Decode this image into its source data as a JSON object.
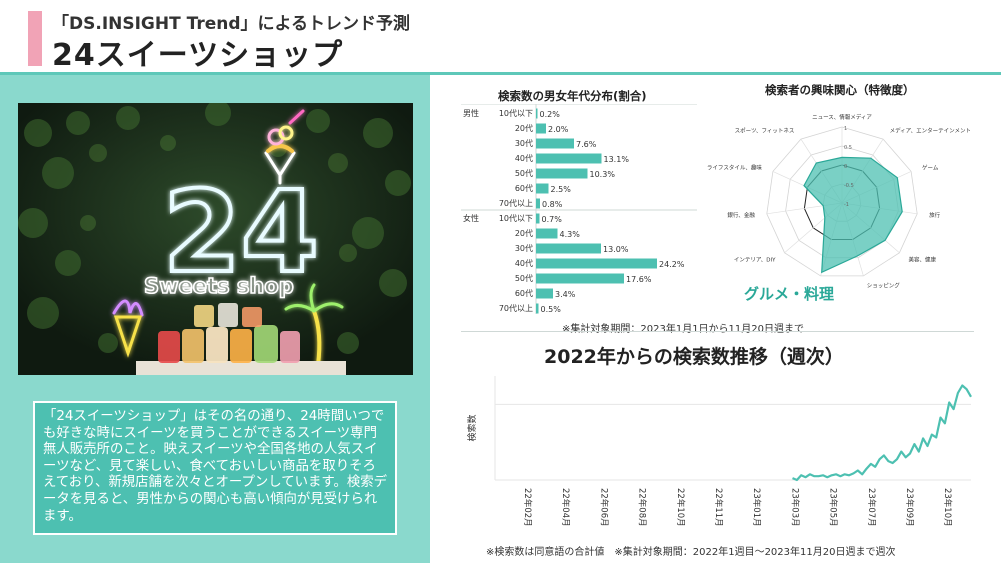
{
  "header": {
    "subtitle": "「DS.INSIGHT Trend」によるトレンド予測",
    "title": "24スイーツショップ"
  },
  "photo": {
    "neon_number": "24",
    "neon_text": "Sweets shop"
  },
  "description": "「24スイーツショップ」はその名の通り、24時間いつでも好きな時にスイーツを買うことができるスイーツ専門無人販売所のこと。映えスイーツや全国各地の人気スイーツなど、見て楽しい、食べておいしい商品を取りそろえており、新規店舗を次々とオープンしています。検索データを見ると、男性からの関心も高い傾向が見受けられます。",
  "gender_chart": {
    "title": "検索数の男女年代分布(割合)"
  },
  "interest_chart": {
    "title": "検索者の興味関心（特徴度）",
    "highlight": "グルメ・料理"
  },
  "period_note": "※集計対象期間：2023年1月1日から11月20日週まで",
  "trend_chart": {
    "title": "2022年からの検索数推移（週次）"
  },
  "footer_note": "※検索数は同意語の合計値　※集計対象期間：2022年1週目〜2023年11月20日週まで週次",
  "chart_data": [
    {
      "type": "bar",
      "orientation": "horizontal",
      "title": "検索数の男女年代分布(割合)",
      "groups": [
        {
          "name": "男性",
          "categories": [
            "10代以下",
            "20代",
            "30代",
            "40代",
            "50代",
            "60代",
            "70代以上"
          ],
          "values": [
            0.2,
            2.0,
            7.6,
            13.1,
            10.3,
            2.5,
            0.8
          ],
          "labels": [
            "0.2%",
            "2.0%",
            "7.6%",
            "13.1%",
            "10.3%",
            "2.5%",
            "0.8%"
          ]
        },
        {
          "name": "女性",
          "categories": [
            "10代以下",
            "20代",
            "30代",
            "40代",
            "50代",
            "60代",
            "70代以上"
          ],
          "values": [
            0.7,
            4.3,
            13.0,
            24.2,
            17.6,
            3.4,
            0.5
          ],
          "labels": [
            "0.7%",
            "4.3%",
            "13.0%",
            "24.2%",
            "17.6%",
            "3.4%",
            "0.5%"
          ]
        }
      ],
      "xlim": [
        0,
        30
      ],
      "color": "#4dc0b1"
    },
    {
      "type": "radar",
      "title": "検索者の興味関心（特徴度）",
      "categories": [
        "ニュース、情報メディア",
        "メディア、エンターテインメント",
        "ゲーム",
        "旅行",
        "美容、健康",
        "ショッピング",
        "グルメ・料理",
        "インテリア、DIY",
        "銀行、金融",
        "ライフスタイル、趣味",
        "スポーツ、フィットネス"
      ],
      "values": [
        0.2,
        0.4,
        0.6,
        0.6,
        0.5,
        0.45,
        0.9,
        -0.4,
        -0.5,
        0.1,
        0.25
      ],
      "rlim": [
        -1,
        1
      ],
      "ticks": [
        "1",
        "0.5",
        "0",
        "-0.5",
        "-1"
      ],
      "color": "#4dc0b1"
    },
    {
      "type": "line",
      "title": "2022年からの検索数推移（週次）",
      "ylabel": "検索数",
      "x_ticks": [
        "22年02月",
        "22年04月",
        "22年06月",
        "22年08月",
        "22年10月",
        "22年11月",
        "23年01月",
        "23年03月",
        "23年05月",
        "23年07月",
        "23年09月",
        "23年10月"
      ],
      "x_start": 0,
      "x_end": 12,
      "data_start": 7.5,
      "values": [
        2,
        0,
        5,
        3,
        6,
        4,
        4,
        5,
        3,
        5,
        6,
        4,
        6,
        5,
        7,
        10,
        6,
        12,
        17,
        14,
        22,
        26,
        20,
        18,
        22,
        30,
        24,
        28,
        38,
        30,
        44,
        36,
        48,
        45,
        66,
        60,
        82,
        75,
        92,
        100,
        96,
        88
      ],
      "ylim": [
        0,
        110
      ],
      "color": "#4dc0b1"
    }
  ]
}
